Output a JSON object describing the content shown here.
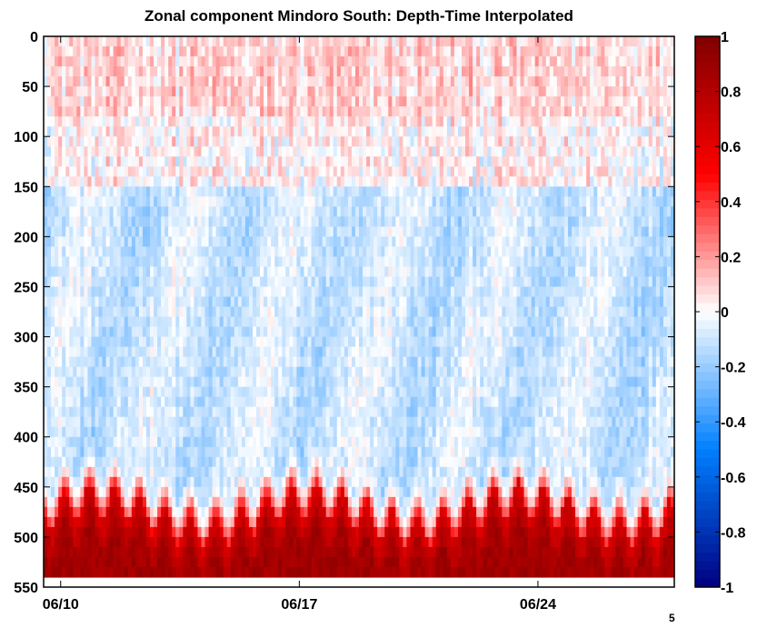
{
  "chart_data": {
    "type": "heatmap",
    "title": "Zonal component Mindoro South: Depth-Time Interpolated",
    "xlabel": "",
    "ylabel": "",
    "x_ticks": [
      "06/10",
      "06/17",
      "06/24"
    ],
    "x_tick_positions": [
      1,
      8,
      15
    ],
    "x_exponent_label": "5",
    "x_range_days": [
      0.5,
      19.0
    ],
    "y_ticks": [
      0,
      50,
      100,
      150,
      200,
      250,
      300,
      350,
      400,
      450,
      500,
      550
    ],
    "ylim": [
      0,
      550
    ],
    "y_reversed": true,
    "data_depth_max": 540,
    "colorbar": {
      "ticks": [
        1,
        0.8,
        0.6,
        0.4,
        0.2,
        0,
        -0.2,
        -0.4,
        -0.6,
        -0.8,
        -1
      ],
      "tick_labels": [
        "1",
        "0.8",
        "0.6",
        "0.4",
        "0.2",
        "0",
        "-0.2",
        "-0.4",
        "-0.6",
        "-0.8",
        "-1"
      ],
      "range": [
        -1,
        1
      ],
      "colormap": "blue-white-red"
    },
    "description_values": {
      "top_layer_0_100m": "weak positive (~0.05 to 0.2)",
      "middle_layer_150_450m": "weak negative (~-0.05 to -0.25)",
      "bottom_layer_470_540m": "strong positive (~0.6 to 0.9) with tidal oscillation of the upper boundary"
    }
  }
}
